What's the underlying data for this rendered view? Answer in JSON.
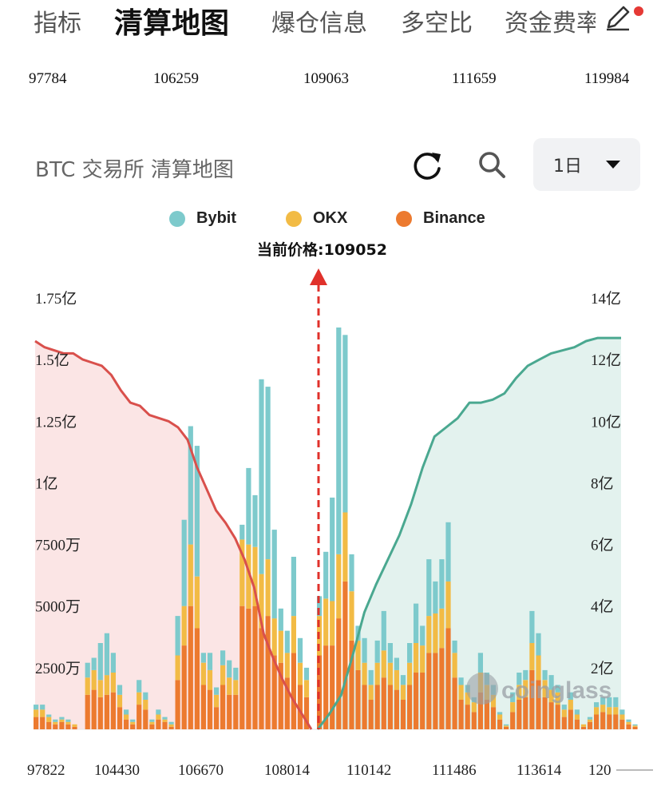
{
  "tabs": [
    {
      "label": "指标",
      "active": false
    },
    {
      "label": "清算地图",
      "active": true
    },
    {
      "label": "爆仓信息",
      "active": false
    },
    {
      "label": "多空比",
      "active": false
    },
    {
      "label": "资金费率",
      "active": false
    }
  ],
  "top_price_row": [
    "97784",
    "106259",
    "109063",
    "111659",
    "119984"
  ],
  "chart_header": {
    "title": "BTC 交易所 清算地图",
    "range": "1日"
  },
  "colors": {
    "bybit": "#7dcacc",
    "okx": "#f2bb45",
    "binance": "#ec7a2f",
    "long_line": "#d9504c",
    "short_line": "#4aa890",
    "long_fill": "#fbe5e5",
    "short_fill": "#e3f2ee",
    "current_price_marker": "#e0312b"
  },
  "chart_data": {
    "type": "bar",
    "title": "BTC 交易所 清算地图",
    "current_price_label": "当前价格:109052",
    "current_price": 109052,
    "legend": [
      {
        "name": "Bybit",
        "color": "#7dcacc"
      },
      {
        "name": "OKX",
        "color": "#f2bb45"
      },
      {
        "name": "Binance",
        "color": "#ec7a2f"
      }
    ],
    "x_tick_labels": [
      "97822",
      "104430",
      "106670",
      "108014",
      "110142",
      "111486",
      "113614",
      "120"
    ],
    "left_axis": {
      "unit": "万",
      "min": 0,
      "max": 17500,
      "ticks": [
        "2500万",
        "5000万",
        "7500万",
        "1亿",
        "1.25亿",
        "1.5亿",
        "1.75亿"
      ]
    },
    "right_axis": {
      "unit": "亿",
      "min": 0,
      "max": 14,
      "ticks": [
        "2亿",
        "4亿",
        "6亿",
        "8亿",
        "10亿",
        "12亿",
        "14亿"
      ]
    },
    "stack_order": [
      "Binance",
      "OKX",
      "Bybit"
    ],
    "bars_left": [
      [
        500,
        300,
        200
      ],
      [
        500,
        300,
        200
      ],
      [
        300,
        200,
        100
      ],
      [
        200,
        100,
        100
      ],
      [
        300,
        100,
        100
      ],
      [
        200,
        100,
        100
      ],
      [
        100,
        100,
        0
      ],
      [
        0,
        0,
        0
      ],
      [
        1400,
        700,
        600
      ],
      [
        1600,
        800,
        500
      ],
      [
        1300,
        700,
        1500
      ],
      [
        1400,
        800,
        1700
      ],
      [
        1500,
        800,
        800
      ],
      [
        900,
        500,
        400
      ],
      [
        400,
        200,
        200
      ],
      [
        200,
        100,
        100
      ],
      [
        1000,
        500,
        500
      ],
      [
        800,
        400,
        300
      ],
      [
        200,
        100,
        100
      ],
      [
        400,
        200,
        200
      ],
      [
        300,
        100,
        100
      ],
      [
        100,
        100,
        100
      ],
      [
        2000,
        1000,
        1600
      ],
      [
        3400,
        1600,
        3500
      ],
      [
        5000,
        2500,
        4800
      ],
      [
        4100,
        2100,
        5300
      ],
      [
        1800,
        900,
        400
      ],
      [
        1600,
        800,
        700
      ],
      [
        900,
        500,
        300
      ],
      [
        1800,
        800,
        600
      ],
      [
        1400,
        700,
        700
      ],
      [
        1400,
        600,
        500
      ],
      [
        5000,
        2700,
        600
      ],
      [
        4900,
        2600,
        3100
      ],
      [
        5000,
        2400,
        2100
      ],
      [
        4100,
        2200,
        7900
      ],
      [
        4600,
        2300,
        7000
      ],
      [
        3000,
        1500,
        3600
      ],
      [
        2700,
        1300,
        900
      ],
      [
        2100,
        1000,
        900
      ],
      [
        3100,
        1500,
        2400
      ],
      [
        1800,
        900,
        1000
      ],
      [
        1300,
        700,
        500
      ]
    ],
    "bars_right": [
      [
        3000,
        1600,
        800
      ],
      [
        3400,
        1900,
        1900
      ],
      [
        3400,
        1800,
        4200
      ],
      [
        4500,
        2600,
        9200
      ],
      [
        6000,
        2800,
        7200
      ],
      [
        3600,
        2000,
        1500
      ],
      [
        2400,
        1200,
        600
      ],
      [
        1800,
        900,
        1000
      ],
      [
        1200,
        600,
        600
      ],
      [
        1800,
        900,
        900
      ],
      [
        2100,
        1100,
        1600
      ],
      [
        1800,
        900,
        800
      ],
      [
        1600,
        800,
        500
      ],
      [
        1200,
        600,
        400
      ],
      [
        1800,
        900,
        800
      ],
      [
        2300,
        1200,
        1600
      ],
      [
        2300,
        1100,
        800
      ],
      [
        3100,
        1500,
        2300
      ],
      [
        3100,
        1600,
        1300
      ],
      [
        3300,
        1600,
        2000
      ],
      [
        4100,
        1900,
        2400
      ],
      [
        2100,
        1000,
        500
      ],
      [
        1200,
        600,
        300
      ],
      [
        1000,
        500,
        300
      ],
      [
        700,
        400,
        200
      ],
      [
        1500,
        800,
        800
      ],
      [
        1200,
        600,
        500
      ],
      [
        900,
        500,
        400
      ],
      [
        400,
        200,
        100
      ],
      [
        100,
        50,
        50
      ],
      [
        700,
        400,
        400
      ],
      [
        1200,
        600,
        500
      ],
      [
        1300,
        700,
        400
      ],
      [
        2400,
        1100,
        1300
      ],
      [
        2000,
        1000,
        900
      ],
      [
        1300,
        700,
        400
      ],
      [
        1100,
        500,
        600
      ],
      [
        1000,
        500,
        300
      ],
      [
        500,
        300,
        200
      ],
      [
        800,
        400,
        300
      ],
      [
        400,
        200,
        200
      ],
      [
        100,
        100,
        0
      ],
      [
        300,
        100,
        100
      ],
      [
        600,
        300,
        200
      ],
      [
        700,
        300,
        300
      ],
      [
        600,
        300,
        400
      ],
      [
        600,
        300,
        400
      ],
      [
        400,
        200,
        200
      ],
      [
        200,
        100,
        100
      ],
      [
        100,
        50,
        50
      ]
    ],
    "cumulative_long_yi": [
      12.6,
      12.4,
      12.3,
      12.2,
      12.2,
      12.0,
      11.9,
      11.8,
      11.5,
      11.0,
      10.6,
      10.5,
      10.2,
      10.1,
      10.0,
      9.8,
      9.4,
      8.5,
      7.8,
      7.1,
      6.7,
      6.2,
      5.5,
      4.6,
      3.1,
      2.3,
      1.6,
      1.0,
      0.5,
      0.0
    ],
    "cumulative_short_yi": [
      0.0,
      0.5,
      1.1,
      2.4,
      3.8,
      4.7,
      5.5,
      6.3,
      7.3,
      8.5,
      9.5,
      9.8,
      10.1,
      10.6,
      10.6,
      10.7,
      10.9,
      11.4,
      11.8,
      12.0,
      12.2,
      12.3,
      12.4,
      12.6,
      12.7,
      12.7,
      12.7
    ]
  },
  "watermark": "coinglass"
}
